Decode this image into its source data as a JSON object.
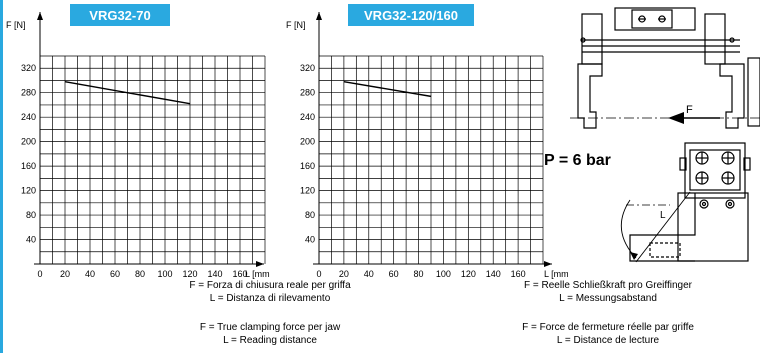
{
  "chart_data": [
    {
      "type": "line",
      "title": "VRG32-70",
      "ylabel": "F [N]",
      "xlabel": "L [mm",
      "x_ticks": [
        0,
        20,
        40,
        60,
        80,
        100,
        120,
        140,
        160
      ],
      "y_ticks": [
        40,
        80,
        120,
        160,
        200,
        240,
        280,
        320
      ],
      "xlim": [
        0,
        180
      ],
      "ylim": [
        0,
        340
      ],
      "grid": true,
      "series": [
        {
          "x": [
            20,
            120
          ],
          "y": [
            298,
            262
          ]
        }
      ]
    },
    {
      "type": "line",
      "title": "VRG32-120/160",
      "ylabel": "F [N]",
      "xlabel": "L [mm]",
      "x_ticks": [
        0,
        20,
        40,
        60,
        80,
        100,
        120,
        140,
        160
      ],
      "y_ticks": [
        40,
        80,
        120,
        160,
        200,
        240,
        280,
        320
      ],
      "xlim": [
        0,
        180
      ],
      "ylim": [
        0,
        340
      ],
      "grid": true,
      "series": [
        {
          "x": [
            20,
            90
          ],
          "y": [
            298,
            274
          ]
        }
      ]
    }
  ],
  "pressure": "P = 6 bar",
  "drawing": {
    "force_label": "F",
    "distance_label": "L"
  },
  "captions": {
    "it_f": "F = Forza di chiusura reale per griffa",
    "it_l": "L = Distanza di rilevamento",
    "en_f": "F = True clamping force per jaw",
    "en_l": "L = Reading distance",
    "de_f": "F = Reelle Schließkraft pro Greiffinger",
    "de_l": "L = Messungsabstand",
    "fr_f": "F = Force de fermeture réelle par griffe",
    "fr_l": "L = Distance de lecture"
  },
  "colors": {
    "title_fill": "#2aa9e0",
    "accent_edge": "#29a8df"
  }
}
